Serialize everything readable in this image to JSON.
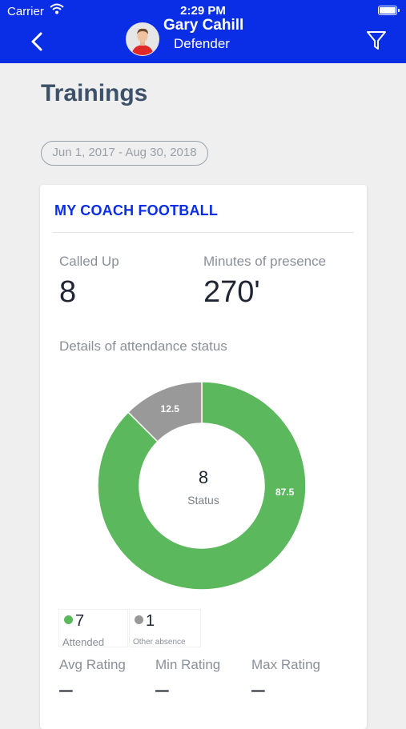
{
  "status_bar": {
    "carrier": "Carrier",
    "time": "2:29 PM"
  },
  "header": {
    "player_name": "Gary Cahill",
    "player_role": "Defender"
  },
  "page": {
    "title": "Trainings",
    "date_range": "Jun 1, 2017 - Aug 30, 2018"
  },
  "card": {
    "title": "MY COACH FOOTBALL",
    "called_up_label": "Called Up",
    "called_up_value": "8",
    "minutes_label": "Minutes of presence",
    "minutes_value": "270'",
    "details_label": "Details of attendance status",
    "donut_center_value": "8",
    "donut_center_label": "Status",
    "legend": [
      {
        "count": "7",
        "label": "Attended"
      },
      {
        "count": "1",
        "label": "Other absence"
      }
    ],
    "ratings": [
      {
        "label": "Avg Rating",
        "value": "–"
      },
      {
        "label": "Min Rating",
        "value": "–"
      },
      {
        "label": "Max Rating",
        "value": "–"
      }
    ]
  },
  "chart_data": {
    "type": "pie",
    "categories": [
      "Attended",
      "Other absence"
    ],
    "values": [
      87.5,
      12.5
    ],
    "labels": [
      "87.5",
      "12.5"
    ],
    "colors": [
      "#5cb85c",
      "#999999"
    ]
  },
  "colors": {
    "brand": "#0a2ee6",
    "attended": "#5cb85c",
    "other_absence": "#999999"
  }
}
